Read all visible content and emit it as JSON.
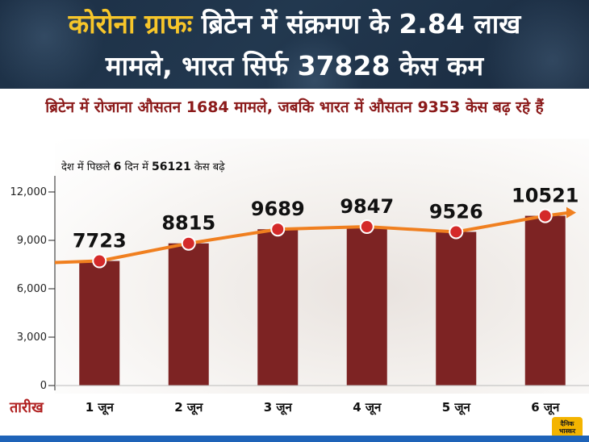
{
  "header": {
    "line1_accent": "कोरोना ग्राफः",
    "line1_rest": "ब्रिटेन में संक्रमण के 2.84 लाख",
    "line2": "मामले, भारत सिर्फ 37828 केस कम"
  },
  "subtitle": "ब्रिटेन में रोजाना औसतन 1684 मामले, जबकि भारत में औसतन 9353 केस बढ़ रहे हैं",
  "note": {
    "prefix": "देश में पिछले",
    "days": "6",
    "middle": "दिन में",
    "total": "56121",
    "suffix": "केस बढ़े"
  },
  "footer_label": "तारीख",
  "logo_text": "दैनिक भास्कर",
  "colors": {
    "header_bg": "#1f3248",
    "accent_yellow": "#f7c62a",
    "subtitle_red": "#8b1a1a",
    "bar": "#7d2323",
    "line": "#f07f1f",
    "point": "#d42a2a",
    "axis_label": "#b01f1f",
    "bottom_strip": "#1e63b8"
  },
  "chart_data": {
    "type": "bar",
    "categories": [
      "1 जून",
      "2 जून",
      "3 जून",
      "4 जून",
      "5 जून",
      "6 जून"
    ],
    "values": [
      7723,
      8815,
      9689,
      9847,
      9526,
      10521
    ],
    "data_labels": [
      "7723",
      "8815",
      "9689",
      "9847",
      "9526",
      "10521"
    ],
    "yticks": [
      "0",
      "3,000",
      "6,000",
      "9,000",
      "12,000"
    ],
    "ytick_values": [
      0,
      3000,
      6000,
      9000,
      12000
    ],
    "ylim": [
      0,
      14000
    ],
    "overlay": "line-with-markers",
    "grid": false
  }
}
